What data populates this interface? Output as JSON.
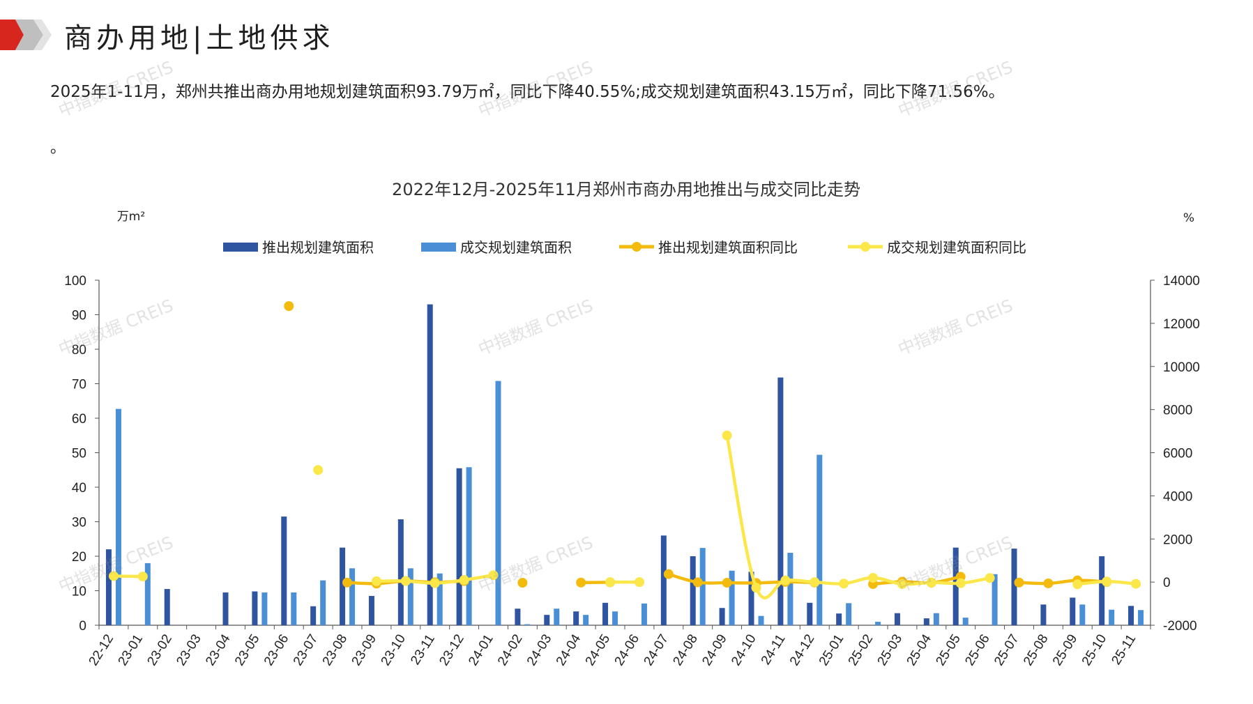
{
  "header": {
    "title": "商办用地|土地供求"
  },
  "summary": {
    "text": "2025年1-11月，郑州共推出商办用地规划建筑面积93.79万㎡，同比下降40.55%;成交规划建筑面积43.15万㎡，同比下降71.56%。",
    "trailing": "。"
  },
  "watermark": "中指数据 CREIS",
  "colors": {
    "supply": "#2f54a0",
    "deal": "#4a8fd6",
    "supply_yoy": "#f2bb0e",
    "deal_yoy": "#fbe74a",
    "brand_red": "#d7261e"
  },
  "chart_data": {
    "type": "bar",
    "title": "2022年12月-2025年11月郑州市商办用地推出与成交同比走势",
    "ylabel_left": "万m²",
    "ylabel_right": "%",
    "ylim_left": [
      0,
      100
    ],
    "yticks_left": [
      0,
      10,
      20,
      30,
      40,
      50,
      60,
      70,
      80,
      90,
      100
    ],
    "ylim_right": [
      -2000,
      14000
    ],
    "yticks_right": [
      -2000,
      0,
      2000,
      4000,
      6000,
      8000,
      10000,
      12000,
      14000
    ],
    "legend_position": "top",
    "categories": [
      "22-12",
      "23-01",
      "23-02",
      "23-03",
      "23-04",
      "23-05",
      "23-06",
      "23-07",
      "23-08",
      "23-09",
      "23-10",
      "23-11",
      "23-12",
      "24-01",
      "24-02",
      "24-03",
      "24-04",
      "24-05",
      "24-06",
      "24-07",
      "24-08",
      "24-09",
      "24-10",
      "24-11",
      "24-12",
      "25-01",
      "25-02",
      "25-03",
      "25-04",
      "25-05",
      "25-06",
      "25-07",
      "25-08",
      "25-09",
      "25-10",
      "25-11"
    ],
    "series": [
      {
        "name": "推出规划建筑面积",
        "kind": "bar",
        "axis": "left",
        "values": [
          22,
          0,
          10.5,
          0,
          9.5,
          9.8,
          31.5,
          5.5,
          22.5,
          8.5,
          30.7,
          93,
          45.5,
          0,
          4.8,
          3,
          4,
          6.5,
          0,
          26,
          20,
          5,
          15.5,
          71.8,
          6.5,
          3.4,
          0,
          3.5,
          2,
          22.5,
          0,
          22.2,
          6,
          8,
          20,
          5.6
        ]
      },
      {
        "name": "成交规划建筑面积",
        "kind": "bar",
        "axis": "left",
        "values": [
          62.7,
          18,
          0,
          0,
          0,
          9.5,
          9.5,
          13,
          16.5,
          0,
          16.5,
          15,
          45.8,
          70.8,
          0.3,
          4.8,
          3,
          4,
          6.3,
          0,
          22.4,
          15.8,
          2.7,
          21,
          49.4,
          6.4,
          1,
          0,
          3.5,
          2.2,
          14.8,
          0,
          0,
          6,
          4.5,
          4.4
        ]
      },
      {
        "name": "推出规划建筑面积同比",
        "kind": "line",
        "axis": "right",
        "values": [
          null,
          null,
          null,
          null,
          null,
          null,
          12800,
          null,
          -20,
          -70,
          50,
          -10,
          50,
          null,
          -30,
          null,
          -20,
          -10,
          null,
          370,
          -10,
          -30,
          -40,
          10,
          -20,
          null,
          -90,
          20,
          -30,
          250,
          null,
          -20,
          -60,
          80,
          10,
          null
        ]
      },
      {
        "name": "成交规划建筑面积同比",
        "kind": "line",
        "axis": "right",
        "values": [
          280,
          260,
          null,
          null,
          null,
          null,
          null,
          5200,
          null,
          40,
          50,
          -50,
          100,
          320,
          null,
          null,
          null,
          0,
          0,
          null,
          null,
          6800,
          -260,
          80,
          0,
          -70,
          200,
          -90,
          -20,
          -50,
          190,
          null,
          null,
          -100,
          30,
          -80
        ]
      }
    ]
  }
}
